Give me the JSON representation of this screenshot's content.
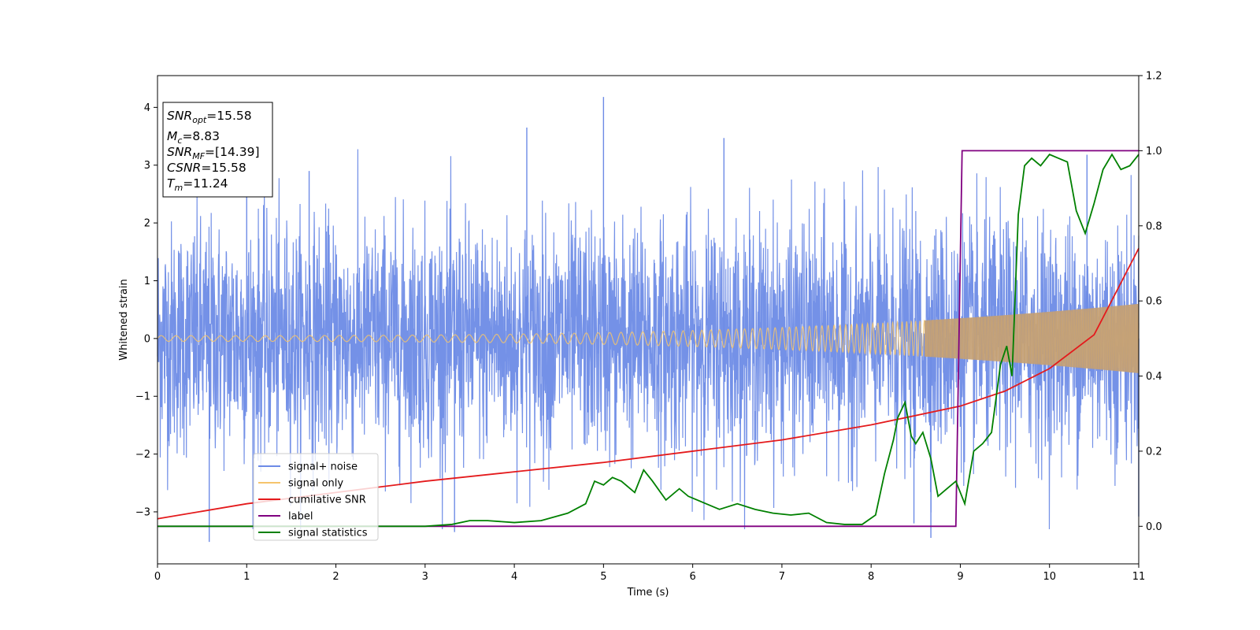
{
  "chart_data": {
    "type": "line",
    "xlabel": "Time (s)",
    "ylabel": "Whitened strain",
    "xlim": [
      0,
      11
    ],
    "ylim": [
      -3.9,
      4.55
    ],
    "y2lim": [
      -0.1,
      1.2
    ],
    "xticks": [
      "0",
      "1",
      "2",
      "3",
      "4",
      "5",
      "6",
      "7",
      "8",
      "9",
      "10",
      "11"
    ],
    "yticks": [
      "4",
      "3",
      "2",
      "1",
      "0",
      "−1",
      "−2",
      "−3"
    ],
    "y2ticks": [
      "1.2",
      "1.0",
      "0.8",
      "0.6",
      "0.4",
      "0.2",
      "0.0"
    ],
    "legend_position": "lower-left",
    "grid": false,
    "series": [
      {
        "name": "signal+ noise",
        "color": "#6d8be6",
        "axis": "left",
        "description": "whitened noise, approx. amplitude 1",
        "envelope_std": 1.0,
        "spikes": [
          {
            "x": 0.58,
            "y": -3.52
          },
          {
            "x": 1.0,
            "y": 2.6
          },
          {
            "x": 1.7,
            "y": 2.9
          },
          {
            "x": 3.33,
            "y": -3.35
          },
          {
            "x": 4.14,
            "y": 3.65
          },
          {
            "x": 5.0,
            "y": 4.18
          },
          {
            "x": 6.35,
            "y": 3.47
          },
          {
            "x": 8.67,
            "y": -3.45
          },
          {
            "x": 8.48,
            "y": -3.2
          },
          {
            "x": 10.42,
            "y": 3.18
          },
          {
            "x": 11.0,
            "y": -3.08
          }
        ]
      },
      {
        "name": "signal only",
        "color": "#f5c46c",
        "axis": "left",
        "description": "chirp with growing amplitude",
        "amplitude_start": 0.05,
        "amplitude_end": 0.6
      },
      {
        "name": "cumilative SNR",
        "color": "#e41a1c",
        "axis": "right",
        "x": [
          0,
          1,
          2,
          3,
          4,
          5,
          6,
          7,
          8,
          9,
          9.5,
          10,
          10.5,
          11
        ],
        "y": [
          0.02,
          0.06,
          0.09,
          0.12,
          0.145,
          0.17,
          0.2,
          0.23,
          0.27,
          0.32,
          0.36,
          0.42,
          0.51,
          0.74
        ]
      },
      {
        "name": "label",
        "color": "#800080",
        "axis": "right",
        "x": [
          0,
          8.95,
          9.02,
          11
        ],
        "y": [
          0.0,
          0.0,
          1.0,
          1.0
        ]
      },
      {
        "name": "signal statistics",
        "color": "#008000",
        "axis": "right",
        "x": [
          0,
          3.0,
          3.3,
          3.5,
          3.7,
          4.0,
          4.3,
          4.6,
          4.8,
          4.9,
          5.0,
          5.1,
          5.2,
          5.35,
          5.45,
          5.55,
          5.7,
          5.85,
          5.95,
          6.1,
          6.3,
          6.5,
          6.7,
          6.9,
          7.1,
          7.3,
          7.5,
          7.7,
          7.9,
          8.05,
          8.15,
          8.25,
          8.3,
          8.38,
          8.45,
          8.5,
          8.58,
          8.67,
          8.75,
          8.85,
          8.95,
          9.05,
          9.15,
          9.25,
          9.35,
          9.45,
          9.52,
          9.58,
          9.65,
          9.72,
          9.8,
          9.9,
          10.0,
          10.1,
          10.2,
          10.3,
          10.4,
          10.5,
          10.6,
          10.7,
          10.8,
          10.9,
          11.0
        ],
        "y": [
          0.0,
          0.0,
          0.005,
          0.015,
          0.015,
          0.01,
          0.015,
          0.035,
          0.06,
          0.12,
          0.11,
          0.13,
          0.12,
          0.09,
          0.15,
          0.12,
          0.07,
          0.1,
          0.08,
          0.065,
          0.045,
          0.06,
          0.045,
          0.035,
          0.03,
          0.035,
          0.01,
          0.005,
          0.005,
          0.03,
          0.14,
          0.23,
          0.29,
          0.33,
          0.24,
          0.22,
          0.25,
          0.18,
          0.08,
          0.1,
          0.12,
          0.06,
          0.2,
          0.22,
          0.25,
          0.43,
          0.48,
          0.4,
          0.83,
          0.96,
          0.98,
          0.96,
          0.99,
          0.98,
          0.97,
          0.84,
          0.78,
          0.86,
          0.95,
          0.99,
          0.95,
          0.96,
          0.99
        ]
      }
    ],
    "annotation_box": {
      "lines": [
        {
          "main": "SNR",
          "sub": "opt",
          "value": "=15.58"
        },
        {
          "main": "M",
          "sub": "c",
          "value": "=8.83"
        },
        {
          "main": "SNR",
          "sub": "MF",
          "value": "=[14.39]"
        },
        {
          "main": "CSNR",
          "sub": "",
          "value": "=15.58"
        },
        {
          "main": "T",
          "sub": "m",
          "value": "=11.24"
        }
      ]
    }
  }
}
